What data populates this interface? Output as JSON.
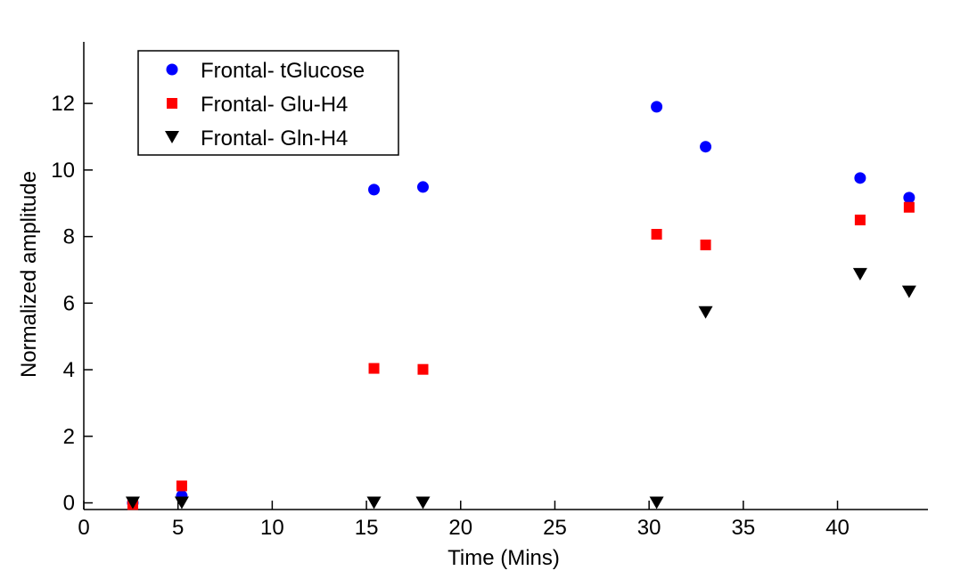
{
  "chart_data": {
    "type": "scatter",
    "title": "",
    "xlabel": "Time (Mins)",
    "ylabel": "Normalized amplitude",
    "xlim": [
      0,
      44.8
    ],
    "ylim": [
      -0.2,
      13.85
    ],
    "xticks": [
      0,
      5,
      10,
      15,
      20,
      25,
      30,
      35,
      40
    ],
    "yticks": [
      0,
      2,
      4,
      6,
      8,
      10,
      12
    ],
    "grid": false,
    "legend_placement": "top-left",
    "x": [
      2.6,
      5.2,
      15.4,
      18.0,
      30.4,
      33.0,
      41.2,
      43.8
    ],
    "series": [
      {
        "name": "Frontal- tGlucose",
        "marker": "circle",
        "color": "#0000ff",
        "values": [
          0.0,
          0.21,
          9.41,
          9.49,
          11.9,
          10.7,
          9.76,
          9.17
        ]
      },
      {
        "name": "Frontal- Glu-H4",
        "marker": "square",
        "color": "#ff0000",
        "values": [
          -0.05,
          0.51,
          4.04,
          4.01,
          8.07,
          7.75,
          8.5,
          8.88
        ]
      },
      {
        "name": "Frontal- Gln-H4",
        "marker": "triangle-down",
        "color": "#000000",
        "values": [
          0.0,
          0.0,
          0.0,
          0.0,
          0.0,
          5.72,
          6.87,
          6.34
        ]
      }
    ]
  }
}
